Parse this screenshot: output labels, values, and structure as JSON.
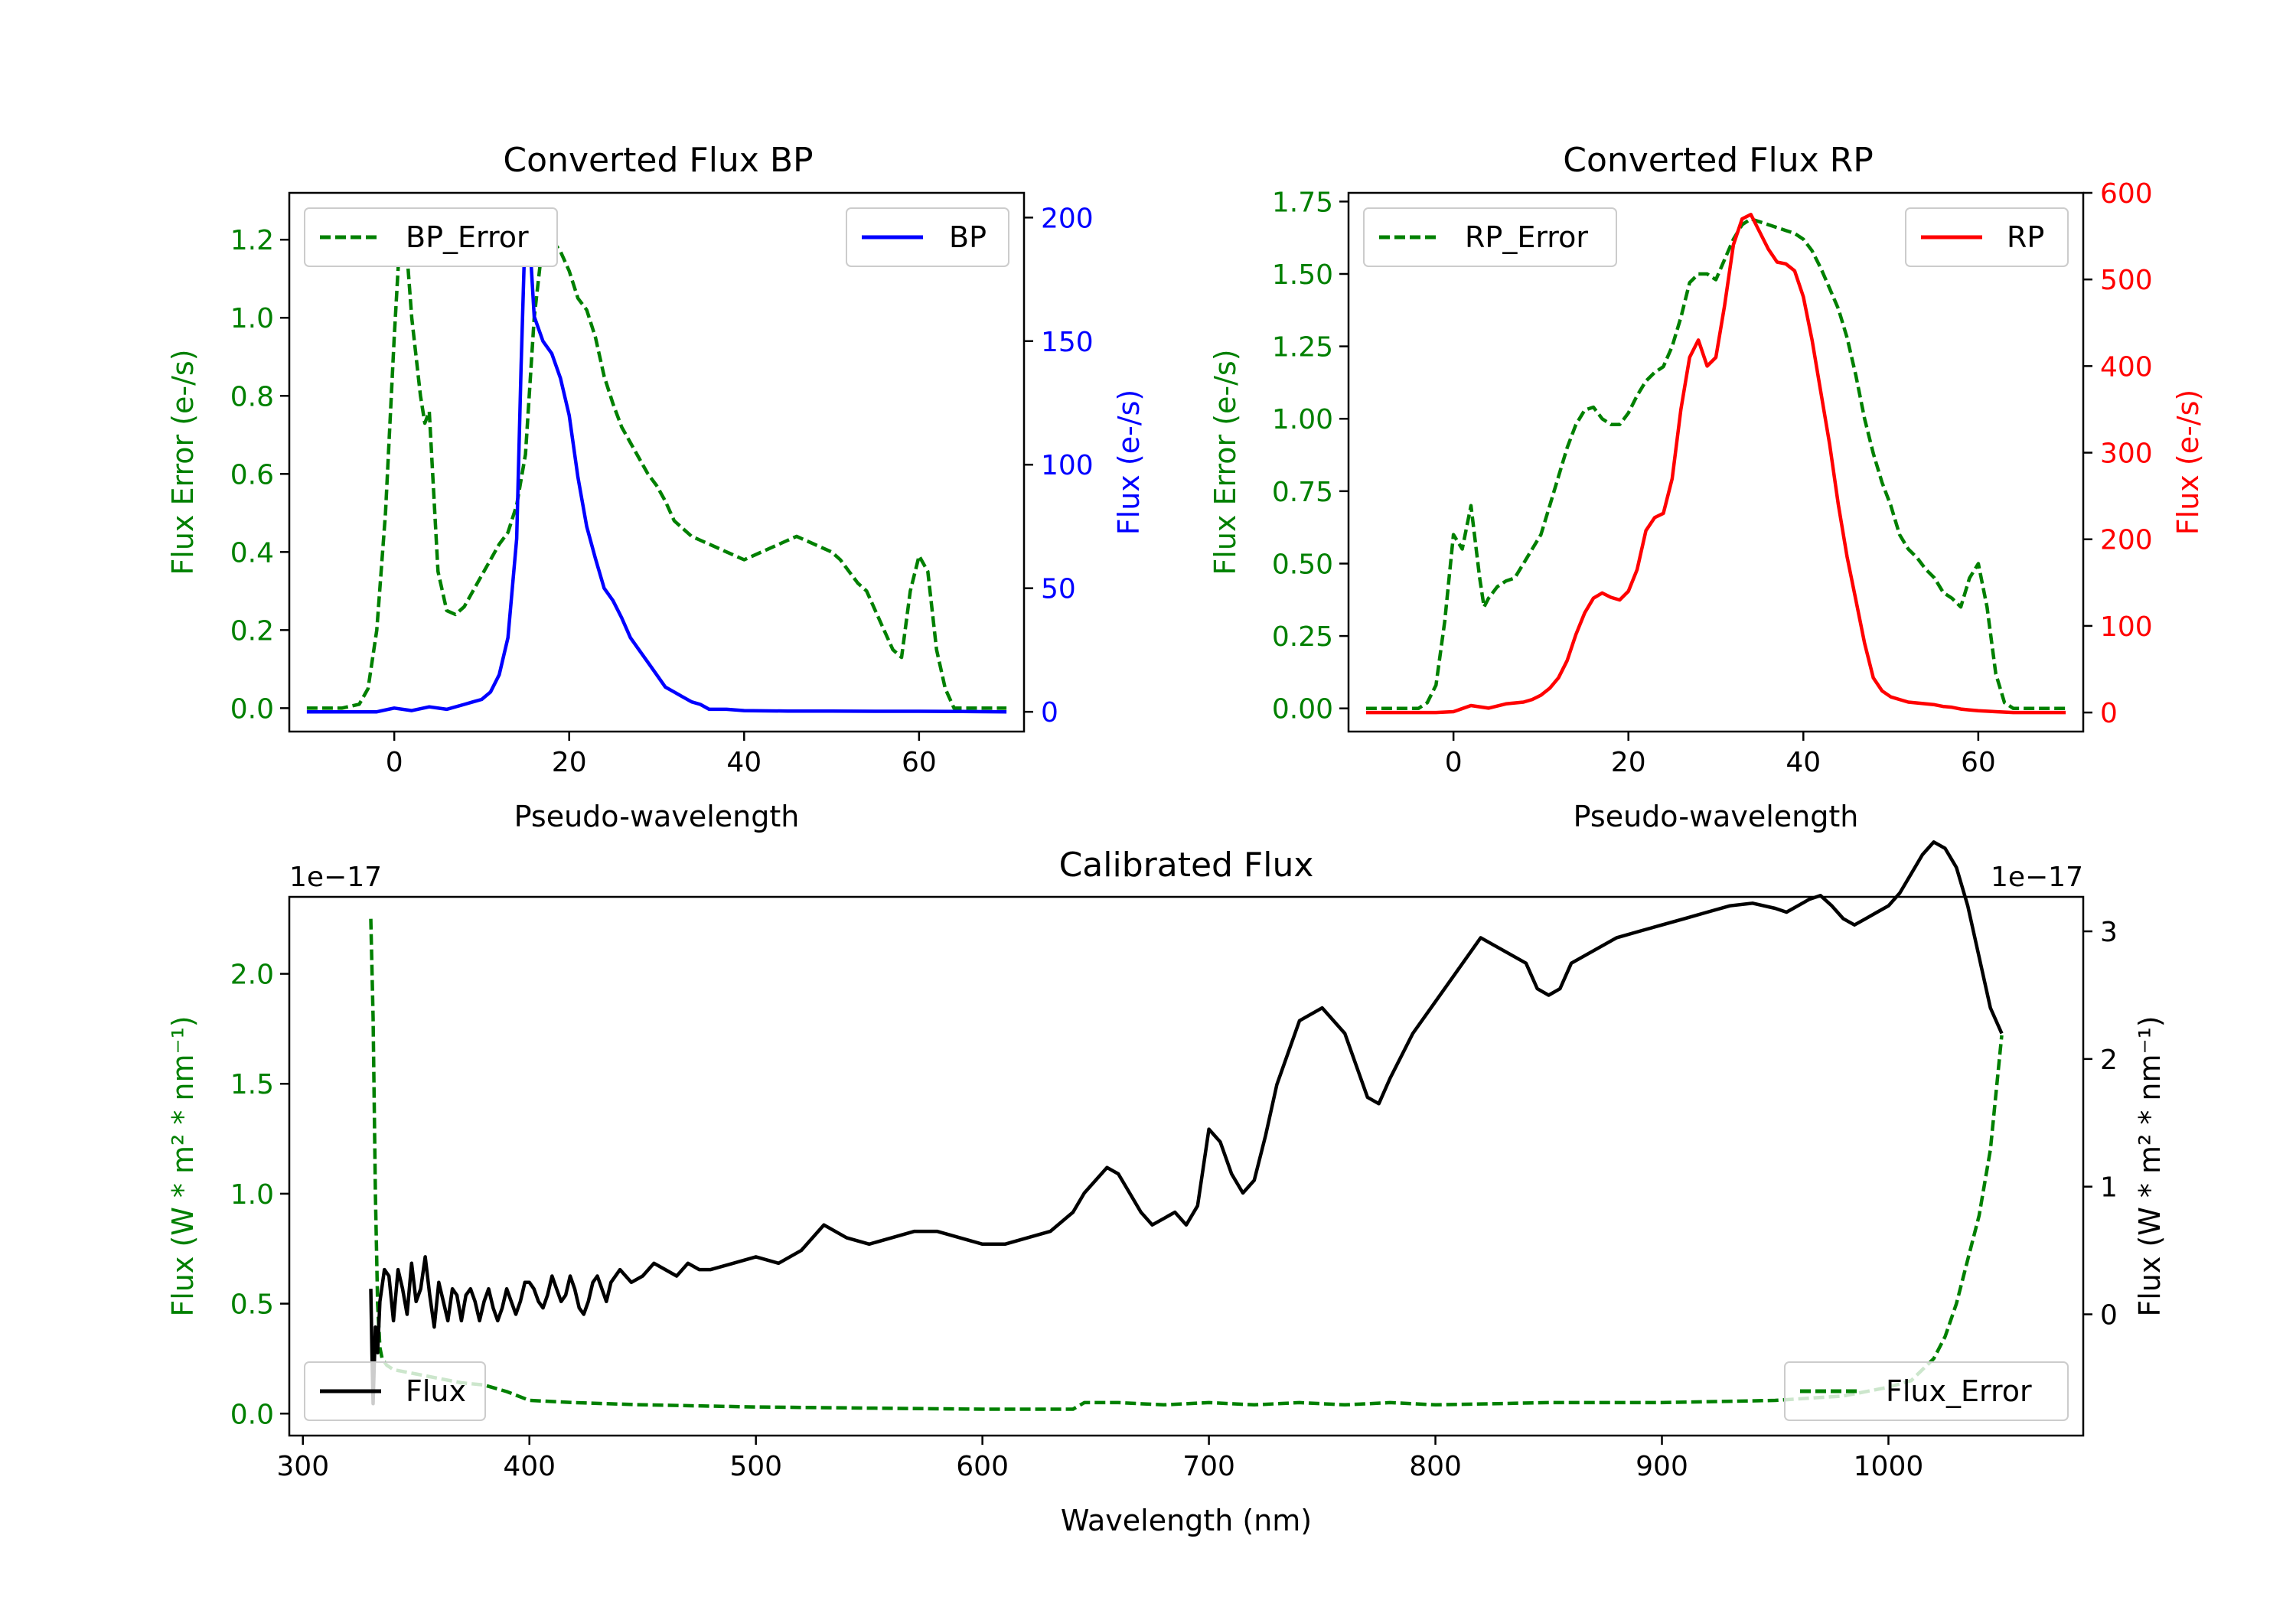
{
  "chart_data": [
    {
      "type": "line",
      "title": "Converted Flux BP",
      "xlabel": "Pseudo-wavelength",
      "ylabel_left": "Flux Error (e-/s)",
      "ylabel_right": "Flux (e-/s)",
      "xlim": [
        -12,
        72
      ],
      "ylim_left": [
        -0.06,
        1.32
      ],
      "ylim_right": [
        -8,
        210
      ],
      "xticks": [
        0,
        20,
        40,
        60
      ],
      "yticks_left": [
        0.0,
        0.2,
        0.4,
        0.6,
        0.8,
        1.0,
        1.2
      ],
      "yticks_right": [
        0,
        50,
        100,
        150,
        200
      ],
      "series": [
        {
          "name": "BP_Error",
          "axis": "left",
          "color": "#008000",
          "dash": true,
          "x": [
            -10,
            -6,
            -4,
            -3,
            -2,
            -1,
            0,
            0.5,
            1,
            1.5,
            2,
            3,
            3.5,
            4,
            5,
            6,
            7,
            8,
            9,
            10,
            11,
            12,
            13,
            14,
            15,
            16,
            17,
            18,
            19,
            20,
            21,
            22,
            23,
            24,
            25,
            26,
            27,
            28,
            29,
            30,
            31,
            32,
            33,
            34,
            35,
            36,
            37,
            38,
            39,
            40,
            41,
            42,
            43,
            44,
            45,
            46,
            47,
            48,
            49,
            50,
            51,
            52,
            53,
            54,
            55,
            56,
            57,
            58,
            59,
            60,
            61,
            62,
            63,
            64,
            65,
            66,
            67,
            68,
            69,
            70
          ],
          "y": [
            0,
            0,
            0.01,
            0.05,
            0.2,
            0.5,
            0.95,
            1.15,
            1.2,
            1.15,
            1.0,
            0.8,
            0.73,
            0.76,
            0.35,
            0.25,
            0.24,
            0.26,
            0.3,
            0.34,
            0.38,
            0.42,
            0.45,
            0.52,
            0.65,
            1.0,
            1.2,
            1.2,
            1.17,
            1.12,
            1.05,
            1.02,
            0.95,
            0.85,
            0.78,
            0.72,
            0.68,
            0.64,
            0.6,
            0.57,
            0.53,
            0.48,
            0.46,
            0.44,
            0.43,
            0.42,
            0.41,
            0.4,
            0.39,
            0.38,
            0.39,
            0.4,
            0.41,
            0.42,
            0.43,
            0.44,
            0.43,
            0.42,
            0.41,
            0.4,
            0.38,
            0.35,
            0.32,
            0.3,
            0.25,
            0.2,
            0.15,
            0.13,
            0.3,
            0.39,
            0.35,
            0.15,
            0.05,
            0.0,
            0.0,
            0.0,
            0.0,
            0.0,
            0.0,
            0.0
          ]
        },
        {
          "name": "BP",
          "axis": "right",
          "color": "#0000ff",
          "dash": false,
          "x": [
            -10,
            -6,
            -2,
            0,
            2,
            4,
            6,
            8,
            9,
            10,
            11,
            12,
            13,
            14,
            14.5,
            15,
            15.5,
            16,
            17,
            18,
            19,
            20,
            21,
            22,
            23,
            24,
            25,
            26,
            27,
            28,
            29,
            30,
            31,
            32,
            33,
            34,
            35,
            36,
            38,
            40,
            45,
            50,
            55,
            60,
            65,
            70
          ],
          "y": [
            0,
            0,
            0,
            1.5,
            0.5,
            2,
            1,
            3,
            4,
            5,
            8,
            15,
            30,
            70,
            140,
            200,
            190,
            160,
            150,
            145,
            135,
            120,
            95,
            75,
            62,
            50,
            45,
            38,
            30,
            25,
            20,
            15,
            10,
            8,
            6,
            4,
            3,
            1,
            1,
            0.5,
            0.3,
            0.3,
            0.2,
            0.2,
            0.1,
            0
          ]
        }
      ],
      "legend": [
        {
          "label": "BP_Error",
          "position": "upper left"
        },
        {
          "label": "BP",
          "position": "upper right"
        }
      ]
    },
    {
      "type": "line",
      "title": "Converted Flux RP",
      "xlabel": "Pseudo-wavelength",
      "ylabel_left": "Flux Error (e-/s)",
      "ylabel_right": "Flux (e-/s)",
      "xlim": [
        -12,
        72
      ],
      "ylim_left": [
        -0.08,
        1.78
      ],
      "ylim_right": [
        -22,
        600
      ],
      "xticks": [
        0,
        20,
        40,
        60
      ],
      "yticks_left": [
        0.0,
        0.25,
        0.5,
        0.75,
        1.0,
        1.25,
        1.5,
        1.75
      ],
      "yticks_right": [
        0,
        100,
        200,
        300,
        400,
        500,
        600
      ],
      "series": [
        {
          "name": "RP_Error",
          "axis": "left",
          "color": "#008000",
          "dash": true,
          "x": [
            -10,
            -4,
            -3,
            -2,
            -1,
            0,
            1,
            2,
            3,
            3.5,
            4,
            5,
            6,
            7,
            8,
            9,
            10,
            11,
            12,
            13,
            14,
            15,
            16,
            17,
            18,
            19,
            20,
            21,
            22,
            23,
            24,
            25,
            26,
            27,
            28,
            29,
            30,
            31,
            32,
            33,
            34,
            35,
            36,
            37,
            38,
            39,
            40,
            41,
            42,
            43,
            44,
            45,
            46,
            47,
            48,
            49,
            50,
            51,
            52,
            53,
            54,
            55,
            56,
            57,
            58,
            59,
            60,
            61,
            62,
            63,
            64,
            65,
            70
          ],
          "y": [
            0,
            0,
            0.02,
            0.08,
            0.3,
            0.6,
            0.55,
            0.7,
            0.45,
            0.35,
            0.38,
            0.42,
            0.44,
            0.45,
            0.5,
            0.55,
            0.6,
            0.7,
            0.8,
            0.9,
            0.98,
            1.03,
            1.04,
            1.0,
            0.98,
            0.98,
            1.02,
            1.08,
            1.13,
            1.16,
            1.18,
            1.25,
            1.35,
            1.47,
            1.5,
            1.5,
            1.48,
            1.55,
            1.62,
            1.67,
            1.69,
            1.68,
            1.67,
            1.66,
            1.65,
            1.64,
            1.62,
            1.58,
            1.52,
            1.45,
            1.38,
            1.28,
            1.15,
            1.0,
            0.88,
            0.78,
            0.7,
            0.6,
            0.55,
            0.52,
            0.48,
            0.45,
            0.4,
            0.38,
            0.35,
            0.45,
            0.5,
            0.35,
            0.12,
            0.02,
            0,
            0,
            0
          ]
        },
        {
          "name": "RP",
          "axis": "right",
          "color": "#ff0000",
          "dash": false,
          "x": [
            -10,
            -6,
            -2,
            0,
            2,
            4,
            6,
            8,
            9,
            10,
            11,
            12,
            13,
            14,
            15,
            16,
            17,
            18,
            19,
            20,
            21,
            22,
            23,
            24,
            25,
            26,
            27,
            28,
            29,
            30,
            31,
            32,
            33,
            34,
            35,
            36,
            37,
            38,
            39,
            40,
            41,
            42,
            43,
            44,
            45,
            46,
            47,
            48,
            49,
            50,
            51,
            52,
            53,
            54,
            55,
            56,
            57,
            58,
            59,
            60,
            62,
            64,
            66,
            70
          ],
          "y": [
            0,
            0,
            0,
            1,
            8,
            5,
            10,
            12,
            15,
            20,
            28,
            40,
            60,
            90,
            115,
            132,
            138,
            133,
            130,
            140,
            165,
            210,
            225,
            230,
            270,
            350,
            410,
            430,
            400,
            410,
            470,
            540,
            570,
            575,
            555,
            535,
            520,
            518,
            510,
            480,
            430,
            370,
            310,
            240,
            180,
            130,
            80,
            40,
            25,
            18,
            15,
            12,
            11,
            10,
            9,
            7,
            6,
            4,
            3,
            2,
            1,
            0,
            0,
            0
          ]
        }
      ],
      "legend": [
        {
          "label": "RP_Error",
          "position": "upper left"
        },
        {
          "label": "RP",
          "position": "upper right"
        }
      ]
    },
    {
      "type": "line",
      "title": "Calibrated Flux",
      "xlabel": "Wavelength (nm)",
      "ylabel_left": "Flux (W * m² * nm⁻¹)",
      "ylabel_right": "Flux (W * m² * nm⁻¹)",
      "offset_left": "1e−17",
      "offset_right": "1e−17",
      "xlim": [
        294,
        1086
      ],
      "ylim_left": [
        -0.1,
        2.35
      ],
      "ylim_right": [
        -0.95,
        3.27
      ],
      "xticks": [
        300,
        400,
        500,
        600,
        700,
        800,
        900,
        1000
      ],
      "yticks_left": [
        0.0,
        0.5,
        1.0,
        1.5,
        2.0
      ],
      "yticks_right": [
        0,
        1,
        2,
        3
      ],
      "series": [
        {
          "name": "Flux_Error",
          "axis": "left",
          "color": "#008000",
          "dash": true,
          "x": [
            330,
            331,
            332,
            333,
            334,
            335,
            337,
            340,
            345,
            350,
            360,
            370,
            380,
            390,
            400,
            420,
            450,
            500,
            550,
            600,
            640,
            645,
            660,
            680,
            700,
            720,
            740,
            760,
            780,
            800,
            850,
            900,
            950,
            980,
            1000,
            1010,
            1020,
            1025,
            1030,
            1035,
            1040,
            1045,
            1050
          ],
          "y": [
            2.25,
            1.8,
            1.0,
            0.5,
            0.3,
            0.25,
            0.22,
            0.2,
            0.19,
            0.18,
            0.16,
            0.14,
            0.13,
            0.1,
            0.06,
            0.05,
            0.04,
            0.03,
            0.025,
            0.02,
            0.02,
            0.05,
            0.05,
            0.04,
            0.05,
            0.04,
            0.05,
            0.04,
            0.05,
            0.04,
            0.05,
            0.05,
            0.06,
            0.08,
            0.12,
            0.15,
            0.25,
            0.35,
            0.5,
            0.7,
            0.9,
            1.2,
            1.72
          ]
        },
        {
          "name": "Flux",
          "axis": "right",
          "color": "#000000",
          "dash": false,
          "x": [
            330,
            330.5,
            331,
            332,
            333,
            334,
            336,
            338,
            340,
            342,
            344,
            346,
            348,
            350,
            352,
            354,
            356,
            358,
            360,
            362,
            364,
            366,
            368,
            370,
            372,
            374,
            376,
            378,
            380,
            382,
            384,
            386,
            388,
            390,
            392,
            394,
            396,
            398,
            400,
            402,
            404,
            406,
            408,
            410,
            412,
            414,
            416,
            418,
            420,
            422,
            424,
            426,
            428,
            430,
            432,
            434,
            436,
            440,
            445,
            450,
            455,
            460,
            465,
            470,
            475,
            480,
            490,
            500,
            510,
            520,
            530,
            540,
            550,
            560,
            570,
            580,
            590,
            600,
            610,
            620,
            630,
            640,
            645,
            650,
            655,
            660,
            665,
            670,
            675,
            680,
            685,
            690,
            695,
            700,
            705,
            710,
            715,
            720,
            725,
            730,
            740,
            750,
            760,
            770,
            775,
            780,
            790,
            800,
            810,
            820,
            830,
            840,
            845,
            850,
            855,
            860,
            870,
            880,
            890,
            900,
            910,
            920,
            930,
            940,
            950,
            955,
            960,
            965,
            970,
            975,
            980,
            985,
            990,
            995,
            1000,
            1005,
            1010,
            1015,
            1020,
            1025,
            1030,
            1035,
            1040,
            1045,
            1050
          ],
          "y": [
            0.2,
            -0.3,
            -0.7,
            -0.1,
            -0.3,
            0.1,
            0.35,
            0.3,
            -0.05,
            0.35,
            0.2,
            0.0,
            0.4,
            0.1,
            0.2,
            0.45,
            0.15,
            -0.1,
            0.25,
            0.1,
            -0.05,
            0.2,
            0.15,
            -0.05,
            0.15,
            0.2,
            0.1,
            -0.05,
            0.1,
            0.2,
            0.05,
            -0.05,
            0.05,
            0.2,
            0.1,
            0.0,
            0.1,
            0.25,
            0.25,
            0.2,
            0.1,
            0.05,
            0.15,
            0.3,
            0.2,
            0.1,
            0.15,
            0.3,
            0.2,
            0.05,
            0.0,
            0.1,
            0.25,
            0.3,
            0.2,
            0.1,
            0.25,
            0.35,
            0.25,
            0.3,
            0.4,
            0.35,
            0.3,
            0.4,
            0.35,
            0.35,
            0.4,
            0.45,
            0.4,
            0.5,
            0.7,
            0.6,
            0.55,
            0.6,
            0.65,
            0.65,
            0.6,
            0.55,
            0.55,
            0.6,
            0.65,
            0.8,
            0.95,
            1.05,
            1.15,
            1.1,
            0.95,
            0.8,
            0.7,
            0.75,
            0.8,
            0.7,
            0.85,
            1.45,
            1.35,
            1.1,
            0.95,
            1.05,
            1.4,
            1.8,
            2.3,
            2.4,
            2.2,
            1.7,
            1.65,
            1.85,
            2.2,
            2.45,
            2.7,
            2.95,
            2.85,
            2.75,
            2.55,
            2.5,
            2.55,
            2.75,
            2.85,
            2.95,
            3.0,
            3.05,
            3.1,
            3.15,
            3.2,
            3.22,
            3.18,
            3.15,
            3.2,
            3.25,
            3.28,
            3.2,
            3.1,
            3.05,
            3.1,
            3.15,
            3.2,
            3.3,
            3.45,
            3.6,
            3.7,
            3.65,
            3.5,
            3.2,
            2.8,
            2.4,
            2.2
          ]
        }
      ],
      "legend": [
        {
          "label": "Flux",
          "position": "lower left"
        },
        {
          "label": "Flux_Error",
          "position": "lower right"
        }
      ]
    }
  ]
}
